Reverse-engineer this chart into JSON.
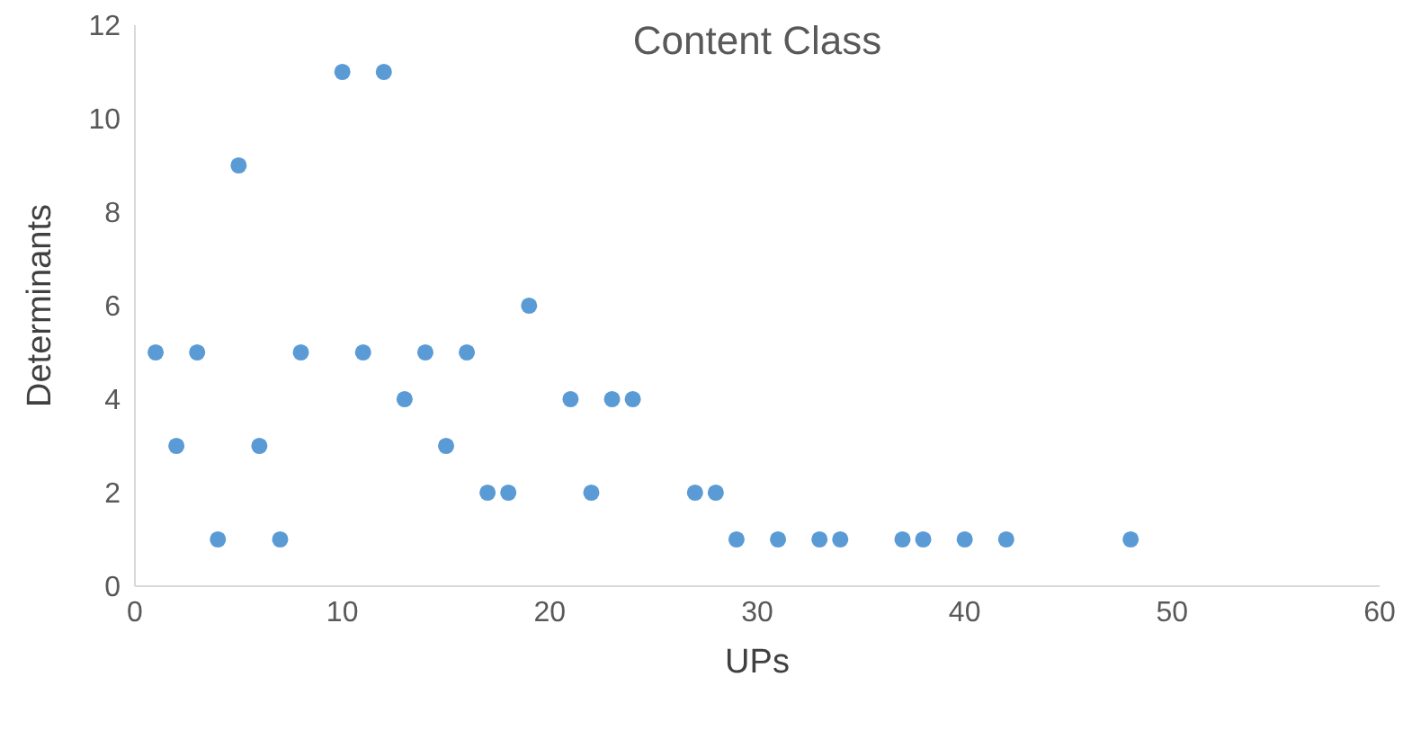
{
  "chart_data": {
    "type": "scatter",
    "title": "Content Class",
    "xlabel": "UPs",
    "ylabel": "Determinants",
    "x": [
      1,
      2,
      3,
      4,
      5,
      6,
      7,
      8,
      10,
      11,
      12,
      13,
      14,
      15,
      16,
      17,
      18,
      19,
      21,
      22,
      23,
      24,
      27,
      28,
      29,
      31,
      33,
      34,
      37,
      38,
      40,
      42,
      48
    ],
    "values": [
      5,
      3,
      5,
      1,
      9,
      3,
      1,
      5,
      11,
      5,
      11,
      4,
      5,
      3,
      5,
      2,
      2,
      6,
      4,
      2,
      4,
      4,
      2,
      2,
      1,
      1,
      1,
      1,
      1,
      1,
      1,
      1,
      1
    ],
    "color": "#5b9bd5",
    "marker": "circle",
    "xlim": [
      0,
      60
    ],
    "xticks": [
      0,
      10,
      20,
      30,
      40,
      50,
      60
    ],
    "ylim": [
      0,
      12
    ],
    "yticks": [
      0,
      2,
      4,
      6,
      8,
      10,
      12
    ],
    "grid": false,
    "legend": false
  }
}
